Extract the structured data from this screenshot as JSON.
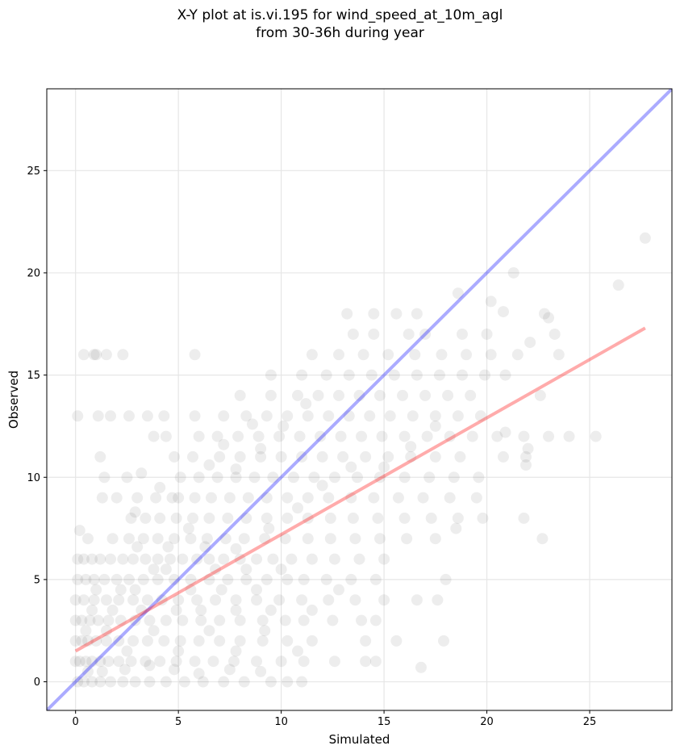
{
  "chart_data": {
    "type": "scatter",
    "title_line1": "X-Y plot at is.vi.195 for wind_speed_at_10m_agl",
    "title_line2": "from 30-36h during year",
    "xlabel": "Simulated",
    "ylabel": "Observed",
    "xlim": [
      -1.4,
      29.0
    ],
    "ylim": [
      -1.4,
      29.0
    ],
    "xticks": [
      0,
      5,
      10,
      15,
      20,
      25
    ],
    "yticks": [
      0,
      5,
      10,
      15,
      20,
      25
    ],
    "grid": true,
    "colors": {
      "points": "#000000",
      "identity_line": "#0000ff",
      "fit_line": "#ff0000",
      "grid": "#e6e6e6"
    },
    "identity_line": {
      "x": [
        -1.4,
        29.0
      ],
      "y": [
        -1.4,
        29.0
      ]
    },
    "fit_line": {
      "x": [
        0.0,
        27.7
      ],
      "y": [
        1.5,
        17.3
      ]
    },
    "points": [
      [
        0.4,
        16
      ],
      [
        0.9,
        16
      ],
      [
        1.0,
        16
      ],
      [
        1.5,
        16
      ],
      [
        2.3,
        16
      ],
      [
        5.8,
        16
      ],
      [
        0.1,
        13
      ],
      [
        1.1,
        13
      ],
      [
        1.7,
        13
      ],
      [
        2.6,
        13
      ],
      [
        3.5,
        13
      ],
      [
        4.3,
        13
      ],
      [
        1.2,
        11
      ],
      [
        3.8,
        12
      ],
      [
        4.4,
        12
      ],
      [
        6.0,
        12
      ],
      [
        2.5,
        10
      ],
      [
        1.4,
        10
      ],
      [
        0.2,
        7.4
      ],
      [
        0.6,
        7
      ],
      [
        1.3,
        9
      ],
      [
        2.0,
        9
      ],
      [
        3.0,
        9
      ],
      [
        3.9,
        9
      ],
      [
        4.7,
        9
      ],
      [
        0.1,
        6
      ],
      [
        0.4,
        6
      ],
      [
        0.8,
        6
      ],
      [
        1.2,
        6
      ],
      [
        1.7,
        6
      ],
      [
        2.3,
        6
      ],
      [
        2.8,
        6
      ],
      [
        3.4,
        6
      ],
      [
        4.0,
        6
      ],
      [
        4.6,
        6
      ],
      [
        5.2,
        6
      ],
      [
        5.9,
        6
      ],
      [
        6.5,
        6
      ],
      [
        7.2,
        6
      ],
      [
        8.0,
        6
      ],
      [
        8.8,
        6
      ],
      [
        9.6,
        6
      ],
      [
        10.5,
        6
      ],
      [
        11.5,
        6
      ],
      [
        12.6,
        6
      ],
      [
        13.8,
        6
      ],
      [
        15.0,
        6
      ],
      [
        0.1,
        5
      ],
      [
        0.5,
        5
      ],
      [
        0.9,
        5
      ],
      [
        1.4,
        5
      ],
      [
        2.0,
        5
      ],
      [
        2.6,
        5
      ],
      [
        3.3,
        5
      ],
      [
        4.0,
        5
      ],
      [
        4.8,
        5
      ],
      [
        5.6,
        5
      ],
      [
        6.5,
        5
      ],
      [
        7.4,
        5
      ],
      [
        8.3,
        5
      ],
      [
        9.3,
        5
      ],
      [
        10.3,
        5
      ],
      [
        11.1,
        5
      ],
      [
        12.2,
        5
      ],
      [
        13.4,
        5
      ],
      [
        14.6,
        5
      ],
      [
        0.0,
        4
      ],
      [
        0.4,
        4
      ],
      [
        0.9,
        4
      ],
      [
        1.5,
        4
      ],
      [
        2.1,
        4
      ],
      [
        2.8,
        4
      ],
      [
        3.5,
        4
      ],
      [
        4.2,
        4
      ],
      [
        5.0,
        4
      ],
      [
        5.9,
        4
      ],
      [
        6.8,
        4
      ],
      [
        7.8,
        4
      ],
      [
        8.8,
        4
      ],
      [
        9.9,
        4
      ],
      [
        11.0,
        4
      ],
      [
        12.3,
        4
      ],
      [
        13.6,
        4
      ],
      [
        15.0,
        4
      ],
      [
        16.6,
        4
      ],
      [
        17.6,
        4
      ],
      [
        0.0,
        3
      ],
      [
        0.3,
        3
      ],
      [
        0.7,
        3
      ],
      [
        1.1,
        3
      ],
      [
        1.6,
        3
      ],
      [
        2.2,
        3
      ],
      [
        2.9,
        3
      ],
      [
        3.6,
        3
      ],
      [
        4.4,
        3
      ],
      [
        5.2,
        3
      ],
      [
        6.1,
        3
      ],
      [
        7.0,
        3
      ],
      [
        8.0,
        3
      ],
      [
        9.1,
        3
      ],
      [
        10.2,
        3
      ],
      [
        11.1,
        3
      ],
      [
        12.5,
        3
      ],
      [
        13.9,
        3
      ],
      [
        14.6,
        3
      ],
      [
        0.0,
        2
      ],
      [
        0.3,
        2
      ],
      [
        0.6,
        2
      ],
      [
        1.0,
        2
      ],
      [
        1.5,
        2
      ],
      [
        2.1,
        2
      ],
      [
        2.8,
        2
      ],
      [
        3.5,
        2
      ],
      [
        4.3,
        2
      ],
      [
        5.1,
        2
      ],
      [
        6.0,
        2
      ],
      [
        7.0,
        2
      ],
      [
        8.0,
        2
      ],
      [
        9.1,
        2
      ],
      [
        10.3,
        2
      ],
      [
        11.5,
        2
      ],
      [
        14.1,
        2
      ],
      [
        15.6,
        2
      ],
      [
        17.9,
        2
      ],
      [
        0.0,
        1
      ],
      [
        0.2,
        1
      ],
      [
        0.5,
        1
      ],
      [
        0.8,
        1
      ],
      [
        1.2,
        1
      ],
      [
        1.6,
        1
      ],
      [
        2.1,
        1
      ],
      [
        2.7,
        1
      ],
      [
        3.4,
        1
      ],
      [
        4.1,
        1
      ],
      [
        4.9,
        1
      ],
      [
        5.8,
        1
      ],
      [
        6.7,
        1
      ],
      [
        7.7,
        1
      ],
      [
        8.8,
        1
      ],
      [
        10.0,
        1
      ],
      [
        11.1,
        1
      ],
      [
        12.6,
        1
      ],
      [
        14.1,
        1
      ],
      [
        14.6,
        1
      ],
      [
        16.8,
        0.7
      ],
      [
        0.1,
        0
      ],
      [
        0.4,
        0
      ],
      [
        0.8,
        0
      ],
      [
        1.2,
        0
      ],
      [
        1.7,
        0
      ],
      [
        2.3,
        0
      ],
      [
        2.9,
        0
      ],
      [
        3.6,
        0
      ],
      [
        4.4,
        0
      ],
      [
        5.3,
        0
      ],
      [
        6.2,
        0
      ],
      [
        7.2,
        0
      ],
      [
        8.2,
        0
      ],
      [
        9.5,
        0
      ],
      [
        10.3,
        0
      ],
      [
        11.0,
        0
      ],
      [
        0.6,
        0.5
      ],
      [
        1.3,
        0.5
      ],
      [
        2.4,
        0.6
      ],
      [
        3.6,
        0.8
      ],
      [
        4.8,
        0.6
      ],
      [
        6.0,
        0.4
      ],
      [
        7.5,
        0.6
      ],
      [
        9.0,
        0.5
      ],
      [
        1.8,
        7
      ],
      [
        2.6,
        7
      ],
      [
        3.3,
        7
      ],
      [
        4.0,
        7
      ],
      [
        4.8,
        7
      ],
      [
        5.6,
        7
      ],
      [
        6.4,
        7
      ],
      [
        7.3,
        7
      ],
      [
        8.2,
        7
      ],
      [
        9.2,
        7
      ],
      [
        10.2,
        7
      ],
      [
        11.3,
        7
      ],
      [
        12.4,
        7
      ],
      [
        13.6,
        7
      ],
      [
        14.8,
        7
      ],
      [
        16.1,
        7
      ],
      [
        17.5,
        7
      ],
      [
        2.7,
        8
      ],
      [
        3.4,
        8
      ],
      [
        4.1,
        8
      ],
      [
        4.9,
        8
      ],
      [
        5.7,
        8
      ],
      [
        6.5,
        8
      ],
      [
        7.4,
        8
      ],
      [
        8.3,
        8
      ],
      [
        9.3,
        8
      ],
      [
        10.3,
        8
      ],
      [
        11.3,
        8
      ],
      [
        12.4,
        8
      ],
      [
        13.5,
        8
      ],
      [
        14.7,
        8
      ],
      [
        16.0,
        8
      ],
      [
        17.3,
        8
      ],
      [
        18.6,
        8
      ],
      [
        19.8,
        8
      ],
      [
        5.0,
        9
      ],
      [
        5.8,
        9
      ],
      [
        6.6,
        9
      ],
      [
        7.5,
        9
      ],
      [
        8.4,
        9
      ],
      [
        9.3,
        9
      ],
      [
        10.3,
        9
      ],
      [
        11.3,
        9
      ],
      [
        12.3,
        9
      ],
      [
        13.4,
        9
      ],
      [
        14.5,
        9
      ],
      [
        15.7,
        9
      ],
      [
        16.9,
        9
      ],
      [
        18.2,
        9
      ],
      [
        19.5,
        9
      ],
      [
        5.1,
        10
      ],
      [
        6.0,
        10
      ],
      [
        6.9,
        10
      ],
      [
        7.8,
        10
      ],
      [
        8.7,
        10
      ],
      [
        9.6,
        10
      ],
      [
        10.6,
        10
      ],
      [
        11.6,
        10
      ],
      [
        12.6,
        10
      ],
      [
        13.7,
        10
      ],
      [
        14.8,
        10
      ],
      [
        16.0,
        10
      ],
      [
        17.2,
        10
      ],
      [
        18.4,
        10
      ],
      [
        19.6,
        10
      ],
      [
        4.8,
        11
      ],
      [
        5.7,
        11
      ],
      [
        7.0,
        11
      ],
      [
        8.0,
        11
      ],
      [
        9.0,
        11
      ],
      [
        10.0,
        11
      ],
      [
        11.0,
        11
      ],
      [
        12.0,
        11
      ],
      [
        13.0,
        11
      ],
      [
        14.1,
        11
      ],
      [
        15.2,
        11
      ],
      [
        16.3,
        11
      ],
      [
        17.5,
        11
      ],
      [
        18.7,
        11
      ],
      [
        20.8,
        11
      ],
      [
        21.9,
        11
      ],
      [
        6.9,
        12
      ],
      [
        7.9,
        12
      ],
      [
        8.9,
        12
      ],
      [
        9.9,
        12
      ],
      [
        10.9,
        12
      ],
      [
        11.9,
        12
      ],
      [
        12.9,
        12
      ],
      [
        13.9,
        12
      ],
      [
        14.9,
        12
      ],
      [
        16.0,
        12
      ],
      [
        17.1,
        12
      ],
      [
        18.2,
        12
      ],
      [
        19.3,
        12
      ],
      [
        20.5,
        12
      ],
      [
        21.8,
        12
      ],
      [
        23.0,
        12
      ],
      [
        24.0,
        12
      ],
      [
        25.3,
        12
      ],
      [
        5.8,
        13
      ],
      [
        7.2,
        13
      ],
      [
        8.3,
        13
      ],
      [
        9.3,
        13
      ],
      [
        10.3,
        13
      ],
      [
        11.3,
        13
      ],
      [
        12.3,
        13
      ],
      [
        13.3,
        13
      ],
      [
        14.3,
        13
      ],
      [
        15.3,
        13
      ],
      [
        16.4,
        13
      ],
      [
        17.5,
        13
      ],
      [
        18.6,
        13
      ],
      [
        19.7,
        13
      ],
      [
        8.0,
        14
      ],
      [
        9.5,
        14
      ],
      [
        10.8,
        14
      ],
      [
        11.8,
        14
      ],
      [
        12.8,
        14
      ],
      [
        13.8,
        14
      ],
      [
        14.8,
        14
      ],
      [
        15.9,
        14
      ],
      [
        17.0,
        14
      ],
      [
        18.1,
        14
      ],
      [
        19.2,
        14
      ],
      [
        22.6,
        14
      ],
      [
        9.5,
        15
      ],
      [
        11.0,
        15
      ],
      [
        12.2,
        15
      ],
      [
        13.3,
        15
      ],
      [
        14.4,
        15
      ],
      [
        15.5,
        15
      ],
      [
        16.6,
        15
      ],
      [
        17.7,
        15
      ],
      [
        18.8,
        15
      ],
      [
        19.9,
        15
      ],
      [
        20.9,
        15
      ],
      [
        11.5,
        16
      ],
      [
        12.8,
        16
      ],
      [
        14.0,
        16
      ],
      [
        15.2,
        16
      ],
      [
        16.5,
        16
      ],
      [
        17.8,
        16
      ],
      [
        19.0,
        16
      ],
      [
        20.2,
        16
      ],
      [
        21.5,
        16
      ],
      [
        23.5,
        16
      ],
      [
        13.5,
        17
      ],
      [
        14.5,
        17
      ],
      [
        16.2,
        17
      ],
      [
        17.0,
        17
      ],
      [
        18.8,
        17
      ],
      [
        20.0,
        17
      ],
      [
        23.3,
        17
      ],
      [
        13.2,
        18
      ],
      [
        14.5,
        18
      ],
      [
        15.6,
        18
      ],
      [
        16.6,
        18
      ],
      [
        22.8,
        18
      ],
      [
        18.6,
        19
      ],
      [
        20.2,
        18.6
      ],
      [
        20.8,
        18.1
      ],
      [
        23.0,
        17.8
      ],
      [
        22.1,
        16.6
      ],
      [
        21.3,
        20
      ],
      [
        26.4,
        19.4
      ],
      [
        27.7,
        21.7
      ],
      [
        20.9,
        12.2
      ],
      [
        22.0,
        11.4
      ],
      [
        21.9,
        10.6
      ],
      [
        21.8,
        8
      ],
      [
        22.7,
        7
      ],
      [
        18.5,
        7.5
      ],
      [
        18.0,
        5
      ],
      [
        6.5,
        10.6
      ],
      [
        7.2,
        11.6
      ],
      [
        8.6,
        12.6
      ],
      [
        7.8,
        10.4
      ],
      [
        9.0,
        11.4
      ],
      [
        10.1,
        12.5
      ],
      [
        11.2,
        13.6
      ],
      [
        3.2,
        10.2
      ],
      [
        4.1,
        9.5
      ],
      [
        2.9,
        8.3
      ],
      [
        3.0,
        6.6
      ],
      [
        4.5,
        6.6
      ],
      [
        5.5,
        7.5
      ],
      [
        6.3,
        6.6
      ],
      [
        7.8,
        6.5
      ],
      [
        9.4,
        7.5
      ],
      [
        10.8,
        8.5
      ],
      [
        12.0,
        9.6
      ],
      [
        13.4,
        10.5
      ],
      [
        15.0,
        10.5
      ],
      [
        16.3,
        11.5
      ],
      [
        17.5,
        12.5
      ],
      [
        1.0,
        4.5
      ],
      [
        2.2,
        4.5
      ],
      [
        3.2,
        3.5
      ],
      [
        4.4,
        5.5
      ],
      [
        5.6,
        4.5
      ],
      [
        6.8,
        5.5
      ],
      [
        7.8,
        3.5
      ],
      [
        8.8,
        4.5
      ],
      [
        10.0,
        5.5
      ],
      [
        11.5,
        3.5
      ],
      [
        12.8,
        4.5
      ],
      [
        0.5,
        2.5
      ],
      [
        1.5,
        2.5
      ],
      [
        2.5,
        1.5
      ],
      [
        3.8,
        2.5
      ],
      [
        5.0,
        1.5
      ],
      [
        6.5,
        2.5
      ],
      [
        7.8,
        1.5
      ],
      [
        9.2,
        2.5
      ],
      [
        10.8,
        1.5
      ],
      [
        0.8,
        3.5
      ],
      [
        1.8,
        3.5
      ],
      [
        2.9,
        4.5
      ],
      [
        3.8,
        5.5
      ],
      [
        4.9,
        3.5
      ],
      [
        6.1,
        3.5
      ],
      [
        7.1,
        4.5
      ],
      [
        8.3,
        5.5
      ],
      [
        9.5,
        3.5
      ]
    ]
  }
}
